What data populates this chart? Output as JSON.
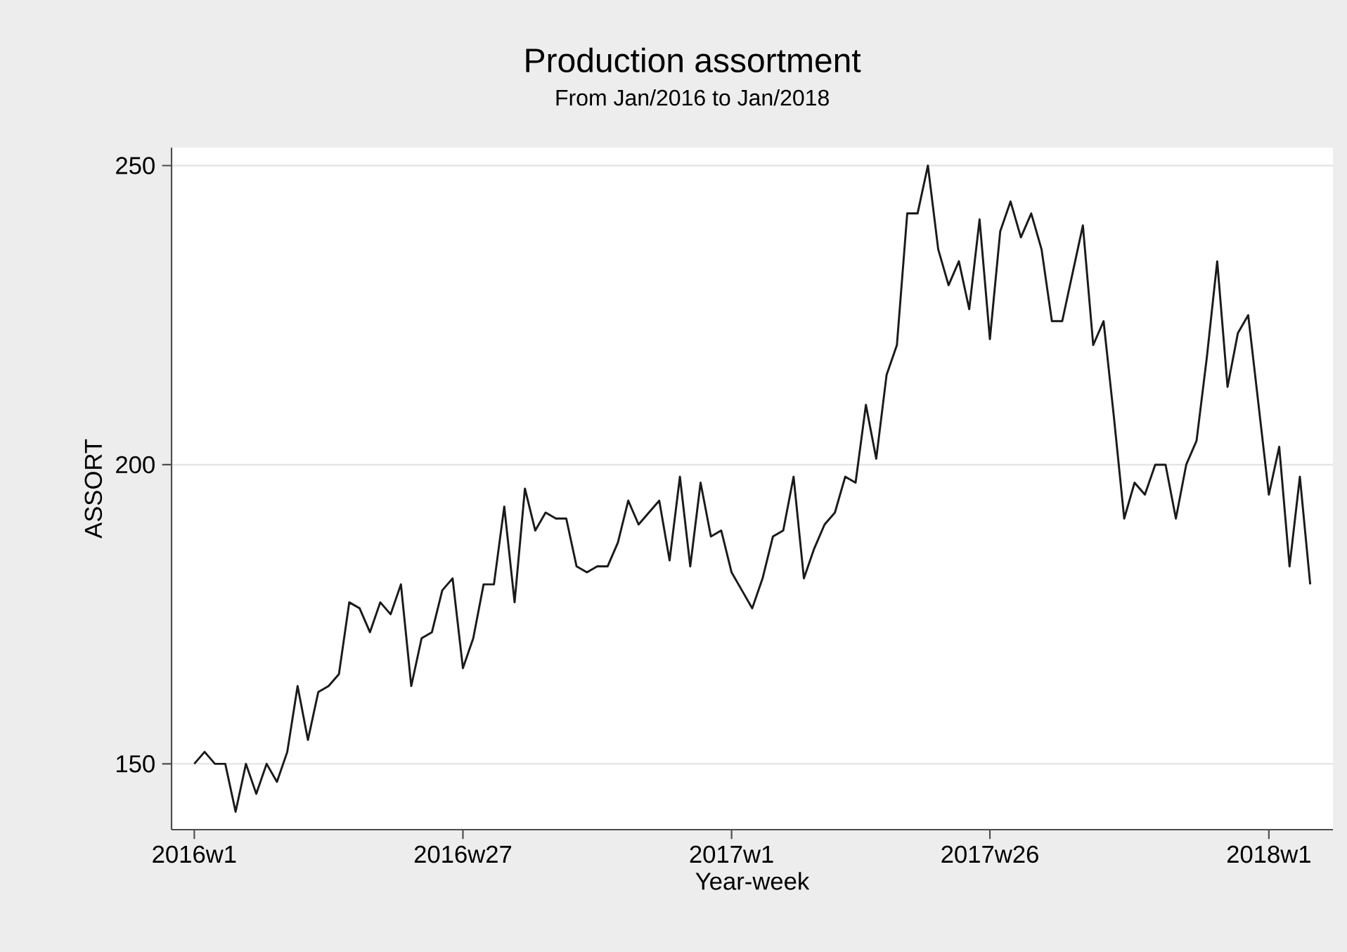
{
  "chart_data": {
    "type": "line",
    "title": "Production assortment",
    "subtitle": "From Jan/2016 to Jan/2018",
    "xlabel": "Year-week",
    "ylabel": "ASSORT",
    "categories": [
      "2016w1",
      null,
      null,
      null,
      null,
      null,
      null,
      null,
      null,
      null,
      null,
      null,
      null,
      null,
      null,
      null,
      null,
      null,
      null,
      null,
      null,
      null,
      null,
      null,
      null,
      null,
      "2016w27",
      null,
      null,
      null,
      null,
      null,
      null,
      null,
      null,
      null,
      null,
      null,
      null,
      null,
      null,
      null,
      null,
      null,
      null,
      null,
      null,
      null,
      null,
      null,
      null,
      null,
      "2017w1",
      null,
      null,
      null,
      null,
      null,
      null,
      null,
      null,
      null,
      null,
      null,
      null,
      null,
      null,
      null,
      null,
      null,
      null,
      null,
      null,
      null,
      null,
      null,
      null,
      "2017w26",
      null,
      null,
      null,
      null,
      null,
      null,
      null,
      null,
      null,
      null,
      null,
      null,
      null,
      null,
      null,
      null,
      null,
      null,
      null,
      null,
      null,
      null,
      null,
      null,
      null,
      null,
      "2018w1",
      null,
      null,
      null,
      null
    ],
    "series": [
      {
        "color": "#1a1a1a",
        "values": [
          150,
          152,
          150,
          150,
          142,
          150,
          145,
          150,
          147,
          152,
          163,
          154,
          162,
          163,
          165,
          177,
          176,
          172,
          177,
          175,
          180,
          163,
          171,
          172,
          179,
          181,
          166,
          171,
          180,
          180,
          193,
          177,
          196,
          189,
          192,
          191,
          191,
          183,
          182,
          183,
          183,
          187,
          194,
          190,
          192,
          194,
          184,
          198,
          183,
          197,
          188,
          189,
          182,
          179,
          176,
          181,
          188,
          189,
          198,
          181,
          186,
          190,
          192,
          198,
          197,
          210,
          201,
          215,
          220,
          242,
          242,
          250,
          236,
          230,
          234,
          226,
          241,
          221,
          239,
          244,
          238,
          242,
          236,
          224,
          224,
          232,
          240,
          220,
          224,
          208,
          191,
          197,
          195,
          200,
          200,
          191,
          200,
          204,
          218,
          234,
          213,
          222,
          225,
          210,
          195,
          203,
          183,
          198,
          180
        ]
      }
    ],
    "ylim": [
      139,
      253
    ],
    "yticks": [
      150,
      200,
      250
    ],
    "grid": "y",
    "line_style": "solid",
    "marker": "none"
  }
}
